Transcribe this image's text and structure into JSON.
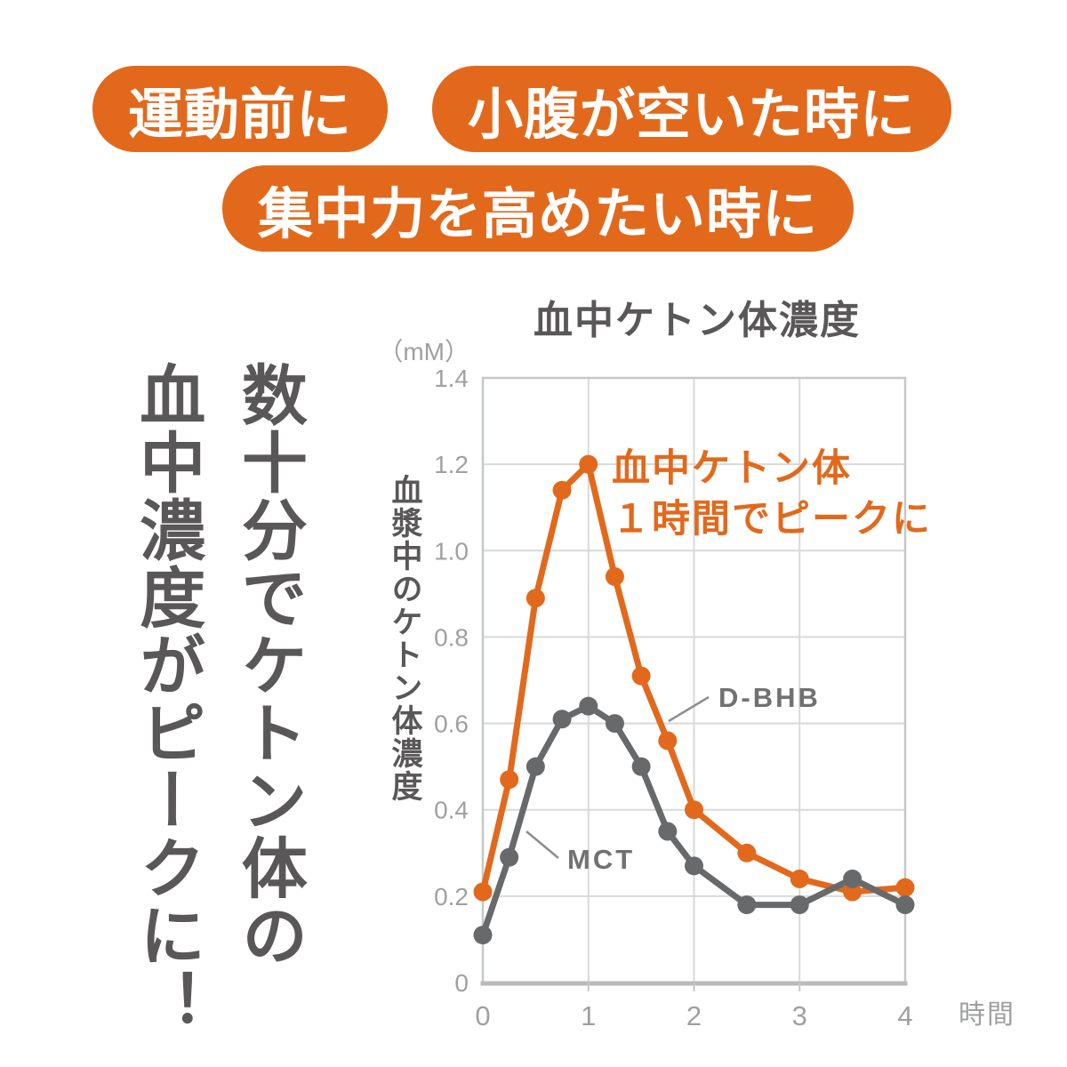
{
  "page": {
    "background": "#FFFFFF"
  },
  "colors": {
    "accent_orange": "#E2691C",
    "dark_text_gray": "#595757",
    "tick_gray": "#9FA0A0",
    "series_gray": "#68696B",
    "grid_gray": "#D8D9D9",
    "border_gray": "#C6C7C7",
    "axis_gray": "#B9BABA",
    "label_gray": "#717171"
  },
  "badges": {
    "bg_color": "#E2691C",
    "text_color": "#FFFFFF",
    "items": [
      {
        "id": "before-exercise",
        "label": "運動前に"
      },
      {
        "id": "when-hungry",
        "label": "小腹が空いた時に"
      },
      {
        "id": "focus",
        "label": "集中力を高めたい時に"
      }
    ]
  },
  "headline": {
    "line1": "数十分でケトン体の",
    "line2": "血中濃度がピークに！",
    "color": "#595757"
  },
  "chart_data": {
    "type": "line",
    "title": "血中ケトン体濃度",
    "unit_label": "（mM）",
    "ylabel": "血漿中のケトン体濃度",
    "xlabel": "時間",
    "xlim": [
      0,
      4
    ],
    "ylim": [
      0,
      1.4
    ],
    "grid": true,
    "x_ticks": [
      0,
      1,
      2,
      3,
      4
    ],
    "y_ticks": [
      "0",
      "0.2",
      "0.4",
      "0.6",
      "0.8",
      "1.0",
      "1.2",
      "1.4"
    ],
    "x": [
      0,
      0.25,
      0.5,
      0.75,
      1,
      1.25,
      1.5,
      1.75,
      2,
      2.5,
      3,
      3.5,
      4
    ],
    "series": [
      {
        "name": "D-BHB",
        "color": "#E2691C",
        "values": [
          0.21,
          0.47,
          0.89,
          1.14,
          1.2,
          0.94,
          0.71,
          0.56,
          0.4,
          0.3,
          0.24,
          0.21,
          0.22
        ]
      },
      {
        "name": "MCT",
        "color": "#68696B",
        "values": [
          0.11,
          0.29,
          0.5,
          0.61,
          0.64,
          0.6,
          0.5,
          0.35,
          0.27,
          0.18,
          0.18,
          0.24,
          0.18
        ]
      }
    ],
    "annotation": {
      "line1": "血中ケトン体",
      "line2": "１時間でピークに",
      "color": "#E2691C"
    }
  }
}
